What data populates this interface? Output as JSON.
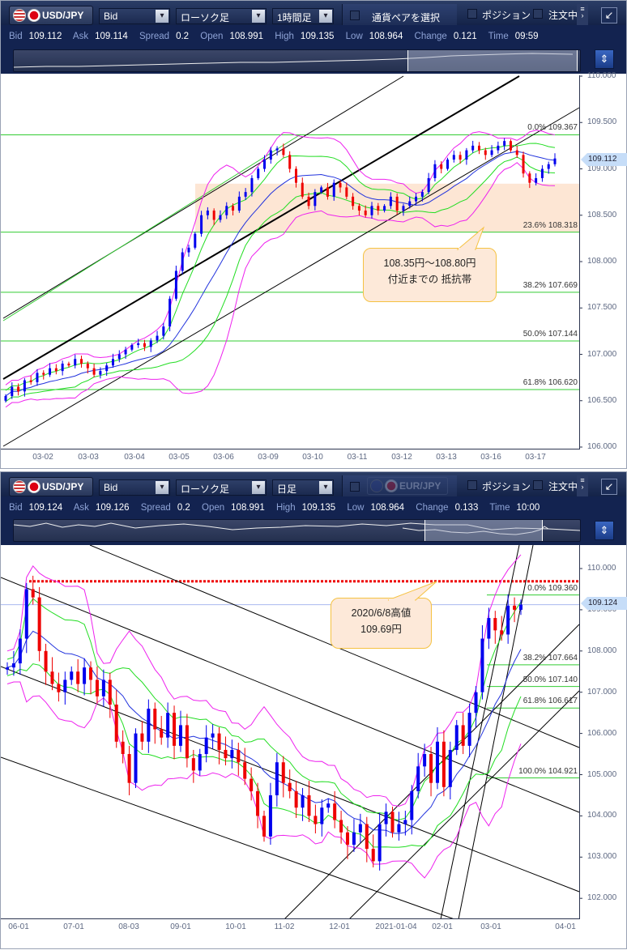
{
  "top_panel": {
    "pair": "USD/JPY",
    "price_type": "Bid",
    "chart_type": "ローソク足",
    "timeframe": "1時間足",
    "pair_select_label": "通貨ペアを選択",
    "position_label": "ポジション",
    "orders_label": "注文中",
    "quote": {
      "bid_label": "Bid",
      "bid": "109.112",
      "ask_label": "Ask",
      "ask": "109.114",
      "spread_label": "Spread",
      "spread": "0.2",
      "open_label": "Open",
      "open": "108.991",
      "high_label": "High",
      "high": "109.135",
      "low_label": "Low",
      "low": "108.964",
      "change_label": "Change",
      "change": "0.121",
      "time_label": "Time",
      "time": "09:59"
    },
    "current_price": "109.112",
    "price_ticks": [
      "110.000",
      "109.500",
      "109.000",
      "108.500",
      "108.000",
      "107.500",
      "107.000",
      "106.500",
      "106.000"
    ],
    "date_ticks": [
      "03-02",
      "03-03",
      "03-04",
      "03-05",
      "03-06",
      "03-09",
      "03-10",
      "03-11",
      "03-12",
      "03-13",
      "03-16",
      "03-17"
    ],
    "fib": [
      {
        "pct": "0.0%",
        "val": "109.367"
      },
      {
        "pct": "23.6%",
        "val": "108.318"
      },
      {
        "pct": "38.2%",
        "val": "107.669"
      },
      {
        "pct": "50.0%",
        "val": "107.144"
      },
      {
        "pct": "61.8%",
        "val": "106.620"
      }
    ],
    "callout": {
      "line1": "108.35円〜108.80円",
      "line2": "付近までの 抵抗帯"
    }
  },
  "bottom_panel": {
    "pair": "USD/JPY",
    "price_type": "Bid",
    "chart_type": "ローソク足",
    "timeframe": "日足",
    "compare_pair": "EUR/JPY",
    "position_label": "ポジション",
    "orders_label": "注文中",
    "quote": {
      "bid_label": "Bid",
      "bid": "109.124",
      "ask_label": "Ask",
      "ask": "109.126",
      "spread_label": "Spread",
      "spread": "0.2",
      "open_label": "Open",
      "open": "108.991",
      "high_label": "High",
      "high": "109.135",
      "low_label": "Low",
      "low": "108.964",
      "change_label": "Change",
      "change": "0.133",
      "time_label": "Time",
      "time": "10:00"
    },
    "current_price": "109.124",
    "price_ticks": [
      "110.000",
      "109.000",
      "108.000",
      "107.000",
      "106.000",
      "105.000",
      "104.000",
      "103.000",
      "102.000"
    ],
    "date_ticks": [
      "06-01",
      "07-01",
      "08-03",
      "09-01",
      "10-01",
      "11-02",
      "12-01",
      "2021-01-04",
      "02-01",
      "03-01",
      "04-01"
    ],
    "fib": [
      {
        "pct": "0.0%",
        "val": "109.360"
      },
      {
        "pct": "38.2%",
        "val": "107.664"
      },
      {
        "pct": "50.0%",
        "val": "107.140"
      },
      {
        "pct": "61.8%",
        "val": "106.617"
      },
      {
        "pct": "100.0%",
        "val": "104.921"
      }
    ],
    "callout": {
      "line1": "2020/6/8高値",
      "line2": "109.69円"
    }
  },
  "colors": {
    "up": "#0000ee",
    "down": "#ee0000",
    "sma": "#2233dd",
    "band1": "#22dd22",
    "band2": "#ee22ee",
    "fib": "#33cc33",
    "zone": "#fde6d4",
    "high_line": "#ee0000"
  },
  "chart_data": [
    {
      "type": "candlestick",
      "title": "USD/JPY 1時間足",
      "ylim": [
        106.0,
        110.0
      ],
      "zone": [
        108.32,
        108.84
      ],
      "fib_levels": [
        109.367,
        108.318,
        107.669,
        107.144,
        106.62
      ],
      "closes": [
        106.55,
        106.65,
        106.6,
        106.72,
        106.7,
        106.8,
        106.78,
        106.85,
        106.82,
        106.9,
        106.88,
        106.95,
        106.9,
        106.85,
        106.78,
        106.82,
        106.88,
        106.95,
        107.0,
        107.05,
        107.1,
        107.12,
        107.08,
        107.15,
        107.2,
        107.3,
        107.6,
        107.9,
        108.1,
        108.15,
        108.3,
        108.5,
        108.55,
        108.45,
        108.5,
        108.6,
        108.55,
        108.7,
        108.75,
        108.9,
        109.0,
        109.1,
        109.2,
        109.22,
        109.15,
        109.0,
        108.85,
        108.7,
        108.6,
        108.75,
        108.8,
        108.7,
        108.85,
        108.8,
        108.7,
        108.6,
        108.55,
        108.5,
        108.6,
        108.55,
        108.6,
        108.7,
        108.55,
        108.6,
        108.65,
        108.7,
        108.75,
        108.9,
        109.05,
        109.0,
        109.1,
        109.15,
        109.1,
        109.2,
        109.25,
        109.2,
        109.15,
        109.2,
        109.25,
        109.3,
        109.2,
        109.15,
        108.95,
        108.85,
        108.9,
        109.0,
        109.05,
        109.112
      ]
    },
    {
      "type": "candlestick",
      "title": "USD/JPY 日足",
      "ylim": [
        102.0,
        110.5
      ],
      "high_line": 109.69,
      "fib_levels": [
        109.36,
        107.664,
        107.14,
        106.617,
        104.921
      ],
      "closes": [
        107.6,
        107.7,
        108.3,
        109.5,
        109.3,
        108.0,
        107.5,
        107.2,
        107.0,
        107.3,
        107.5,
        107.2,
        107.6,
        107.3,
        106.9,
        107.3,
        106.7,
        105.8,
        105.5,
        104.8,
        106.0,
        105.8,
        106.6,
        106.1,
        105.9,
        106.5,
        105.7,
        106.2,
        105.4,
        105.1,
        105.5,
        105.9,
        106.0,
        105.6,
        105.4,
        105.6,
        105.3,
        104.9,
        104.6,
        104.0,
        103.5,
        104.5,
        105.3,
        104.8,
        104.6,
        104.2,
        104.5,
        104.0,
        103.8,
        104.2,
        104.3,
        103.9,
        103.6,
        103.3,
        103.6,
        103.8,
        103.2,
        102.9,
        103.8,
        104.1,
        103.6,
        103.8,
        103.9,
        104.6,
        105.2,
        105.5,
        104.8,
        105.8,
        104.7,
        105.6,
        106.2,
        105.7,
        106.5,
        107.0,
        108.3,
        108.8,
        108.5,
        108.4,
        109.1,
        109.0,
        109.124
      ]
    }
  ]
}
